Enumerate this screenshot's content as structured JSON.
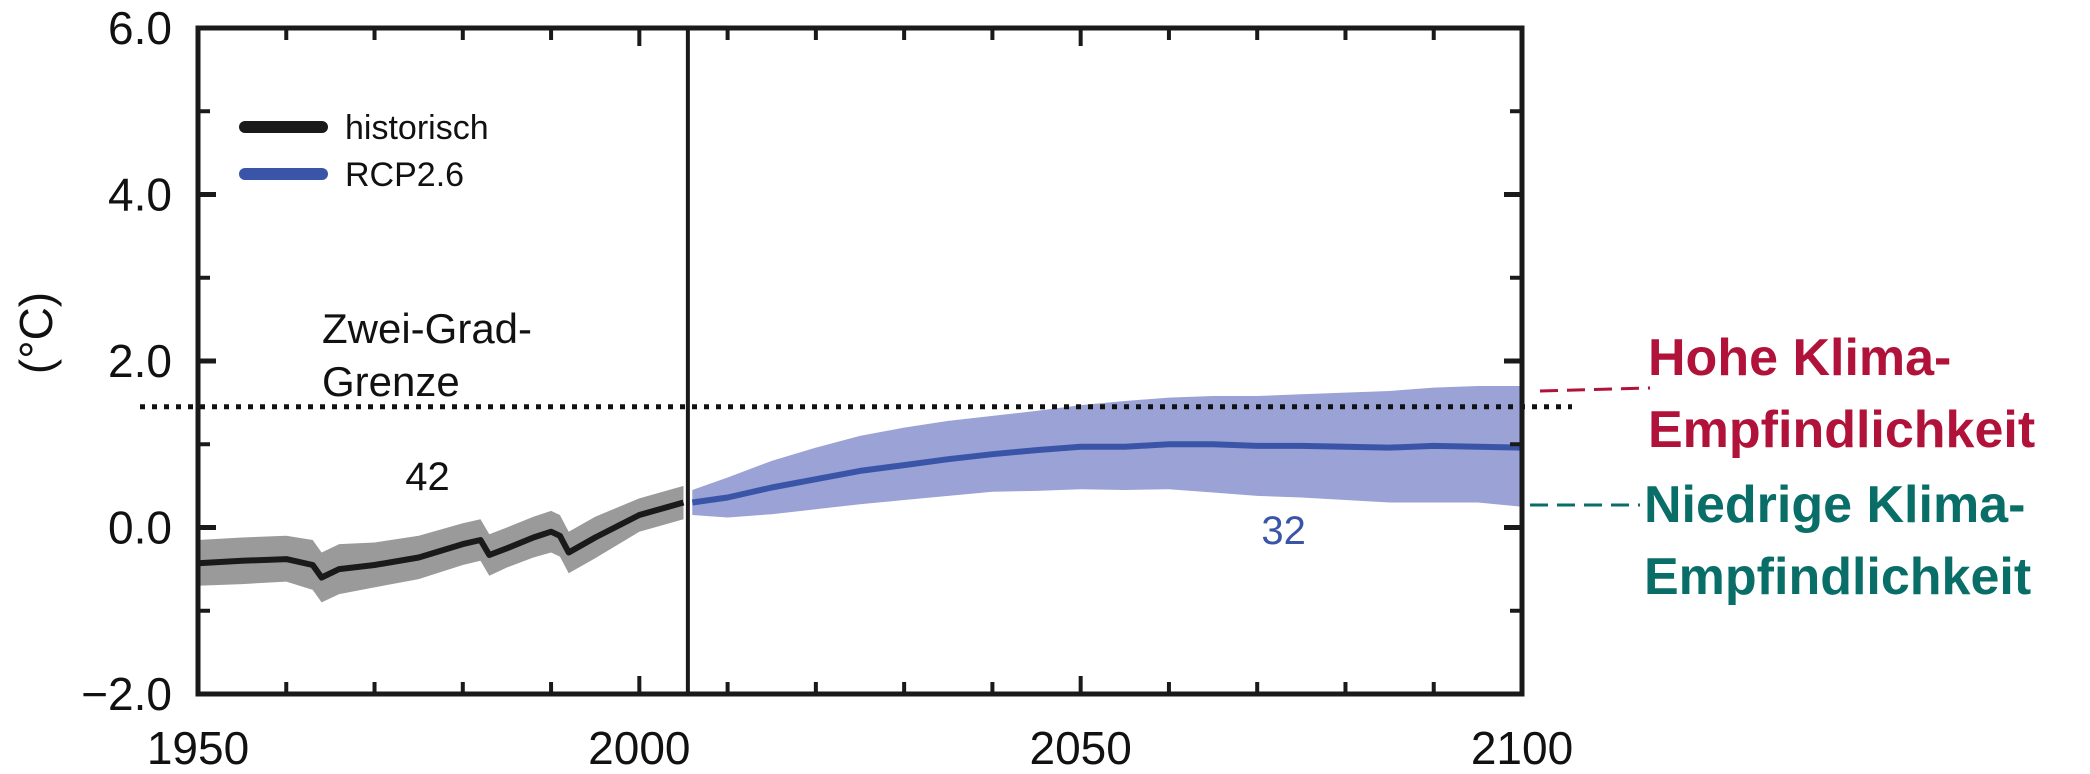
{
  "chart_data": {
    "type": "line",
    "title": "",
    "xlabel": "",
    "ylabel": "(°C)",
    "xlim": [
      1950,
      2100
    ],
    "ylim": [
      -2.0,
      6.0
    ],
    "x_ticks": [
      1950,
      2000,
      2050,
      2100
    ],
    "x_tick_labels": [
      "1950",
      "2000",
      "2050",
      "2100"
    ],
    "y_ticks": [
      -2.0,
      0.0,
      2.0,
      4.0,
      6.0
    ],
    "y_tick_labels": [
      "−2.0",
      "0.0",
      "2.0",
      "4.0",
      "6.0"
    ],
    "grid": false,
    "legend": {
      "placement": "top-left",
      "entries": [
        {
          "label": "historisch",
          "color": "#1a1a1a"
        },
        {
          "label": "RCP2.6",
          "color": "#3a55a8"
        }
      ]
    },
    "series": [
      {
        "name": "historisch",
        "color": "#1a1a1a",
        "band_color": "#9a9a9a",
        "x": [
          1950,
          1955,
          1960,
          1963,
          1964,
          1966,
          1970,
          1975,
          1980,
          1982,
          1983,
          1985,
          1988,
          1990,
          1991,
          1992,
          1995,
          2000,
          2005
        ],
        "y": [
          -0.43,
          -0.4,
          -0.38,
          -0.45,
          -0.6,
          -0.5,
          -0.45,
          -0.36,
          -0.2,
          -0.15,
          -0.33,
          -0.25,
          -0.12,
          -0.05,
          -0.1,
          -0.3,
          -0.12,
          0.15,
          0.3
        ],
        "lower": [
          -0.7,
          -0.68,
          -0.65,
          -0.75,
          -0.9,
          -0.8,
          -0.72,
          -0.62,
          -0.45,
          -0.4,
          -0.58,
          -0.48,
          -0.36,
          -0.3,
          -0.35,
          -0.55,
          -0.37,
          -0.05,
          0.1
        ],
        "upper": [
          -0.15,
          -0.12,
          -0.1,
          -0.15,
          -0.3,
          -0.2,
          -0.18,
          -0.1,
          0.05,
          0.1,
          -0.08,
          0.0,
          0.13,
          0.2,
          0.15,
          -0.05,
          0.13,
          0.35,
          0.5
        ]
      },
      {
        "name": "RCP2.6",
        "color": "#3a55a8",
        "band_color": "#9aa2d6",
        "x": [
          2006,
          2010,
          2015,
          2020,
          2025,
          2030,
          2035,
          2040,
          2045,
          2050,
          2055,
          2060,
          2065,
          2070,
          2075,
          2080,
          2085,
          2090,
          2095,
          2100
        ],
        "y": [
          0.3,
          0.36,
          0.48,
          0.58,
          0.68,
          0.75,
          0.82,
          0.88,
          0.93,
          0.97,
          0.97,
          1.0,
          1.0,
          0.98,
          0.98,
          0.97,
          0.96,
          0.98,
          0.97,
          0.96
        ],
        "lower": [
          0.15,
          0.12,
          0.16,
          0.22,
          0.28,
          0.33,
          0.38,
          0.43,
          0.44,
          0.46,
          0.45,
          0.46,
          0.42,
          0.38,
          0.36,
          0.33,
          0.3,
          0.3,
          0.3,
          0.25
        ],
        "upper": [
          0.45,
          0.6,
          0.8,
          0.96,
          1.1,
          1.2,
          1.28,
          1.34,
          1.4,
          1.47,
          1.52,
          1.56,
          1.58,
          1.58,
          1.6,
          1.62,
          1.64,
          1.68,
          1.7,
          1.7
        ]
      }
    ],
    "reference_lines": [
      {
        "axis": "y",
        "value": 1.45,
        "style": "dotted",
        "label": "Zwei-Grad-Grenze",
        "label_lines": [
          "Zwei-Grad-",
          "Grenze"
        ]
      },
      {
        "axis": "x",
        "value": 2005.5,
        "style": "solid"
      }
    ],
    "annotations": [
      {
        "text": "42",
        "x": 1976,
        "y": 0.45,
        "color": "#111111"
      },
      {
        "text": "32",
        "x": 2073,
        "y": -0.2,
        "color": "#3a55a8"
      }
    ],
    "side_labels": [
      {
        "lines": [
          "Hohe Klima-",
          "Empfindlichkeit"
        ],
        "color": "#b0123a",
        "y_ref": 1.65
      },
      {
        "lines": [
          "Niedrige Klima-",
          "Empfindlichkeit"
        ],
        "color": "#0a6e68",
        "y_ref": 0.28
      }
    ]
  }
}
